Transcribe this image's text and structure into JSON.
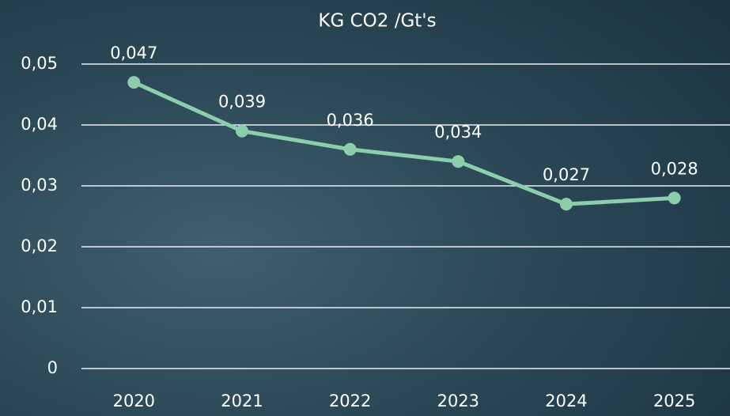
{
  "chart_data": {
    "type": "line",
    "title": "KG CO2 /Gt's",
    "categories": [
      "2020",
      "2021",
      "2022",
      "2023",
      "2024",
      "2025"
    ],
    "series": [
      {
        "name": "KG CO2 /Gt's",
        "color": "#8ccdac",
        "values": [
          0.047,
          0.039,
          0.036,
          0.034,
          0.027,
          0.028
        ],
        "value_labels": [
          "0,047",
          "0,039",
          "0,036",
          "0,034",
          "0,027",
          "0,028"
        ]
      }
    ],
    "ylim": [
      0,
      0.05
    ],
    "yticks": [
      0,
      {
        "value": 0.01,
        "label": "0,01"
      },
      {
        "value": 0.02,
        "label": "0,02"
      },
      {
        "value": 0.03,
        "label": "0,03"
      },
      {
        "value": 0.04,
        "label": "0,04"
      },
      {
        "value": 0.05,
        "label": "0,05"
      }
    ],
    "grid": true
  }
}
